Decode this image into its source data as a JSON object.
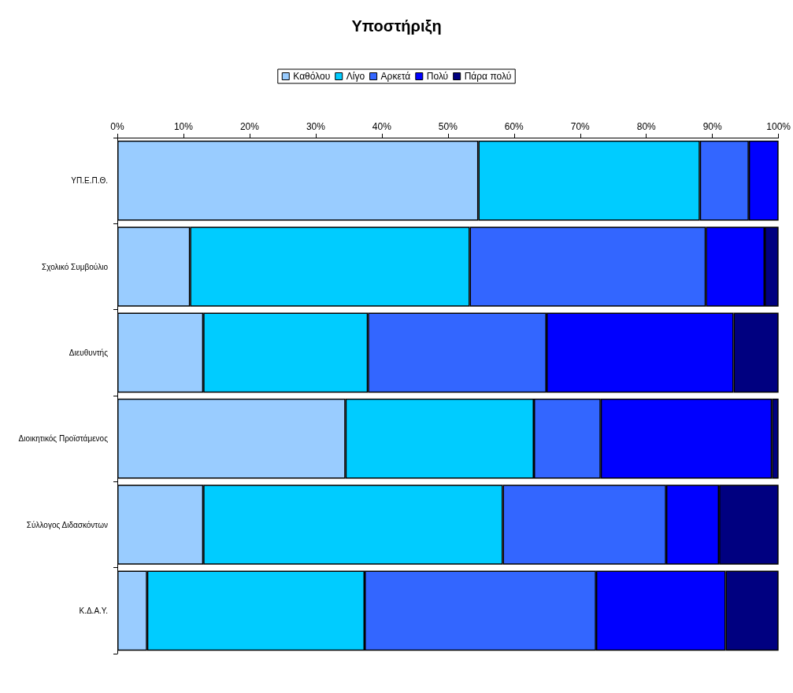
{
  "chart_data": {
    "type": "bar",
    "title": "Υποστήριξη",
    "orientation": "horizontal",
    "stacked": true,
    "legend": "top",
    "grid": false,
    "categories": [
      "ΥΠ.Ε.Π.Θ.",
      "Σχολικό Συμβούλιο",
      "Διευθυντής",
      "Διοικητικός Προϊστάμενος",
      "Σύλλογος Διδασκόντων",
      "Κ.Δ.Α.Υ."
    ],
    "series": [
      {
        "name": "Καθόλου",
        "color": "#99ccff",
        "values": [
          54.6,
          11.0,
          13.0,
          34.5,
          13.0,
          4.5
        ]
      },
      {
        "name": "Λίγο",
        "color": "#00ccff",
        "values": [
          33.5,
          42.3,
          24.9,
          28.5,
          45.3,
          32.9
        ]
      },
      {
        "name": "Αρκετά",
        "color": "#3366ff",
        "values": [
          7.4,
          35.7,
          27.0,
          10.1,
          24.7,
          35.0
        ]
      },
      {
        "name": "Πολύ",
        "color": "#0000ff",
        "values": [
          4.5,
          8.9,
          28.3,
          25.9,
          8.0,
          19.6
        ]
      },
      {
        "name": "Πάρα πολύ",
        "color": "#000080",
        "values": [
          null,
          2.1,
          6.8,
          1.0,
          9.0,
          8.0
        ]
      }
    ],
    "xlim": [
      0,
      100
    ],
    "xticks": [
      {
        "value": 0,
        "label": "0%"
      },
      {
        "value": 10,
        "label": "10%"
      },
      {
        "value": 20,
        "label": "20%"
      },
      {
        "value": 30,
        "label": "30%"
      },
      {
        "value": 40,
        "label": "40%"
      },
      {
        "value": 50,
        "label": "50%"
      },
      {
        "value": 60,
        "label": "60%"
      },
      {
        "value": 70,
        "label": "70%"
      },
      {
        "value": 80,
        "label": "80%"
      },
      {
        "value": 90,
        "label": "90%"
      },
      {
        "value": 100,
        "label": "100%"
      }
    ]
  }
}
